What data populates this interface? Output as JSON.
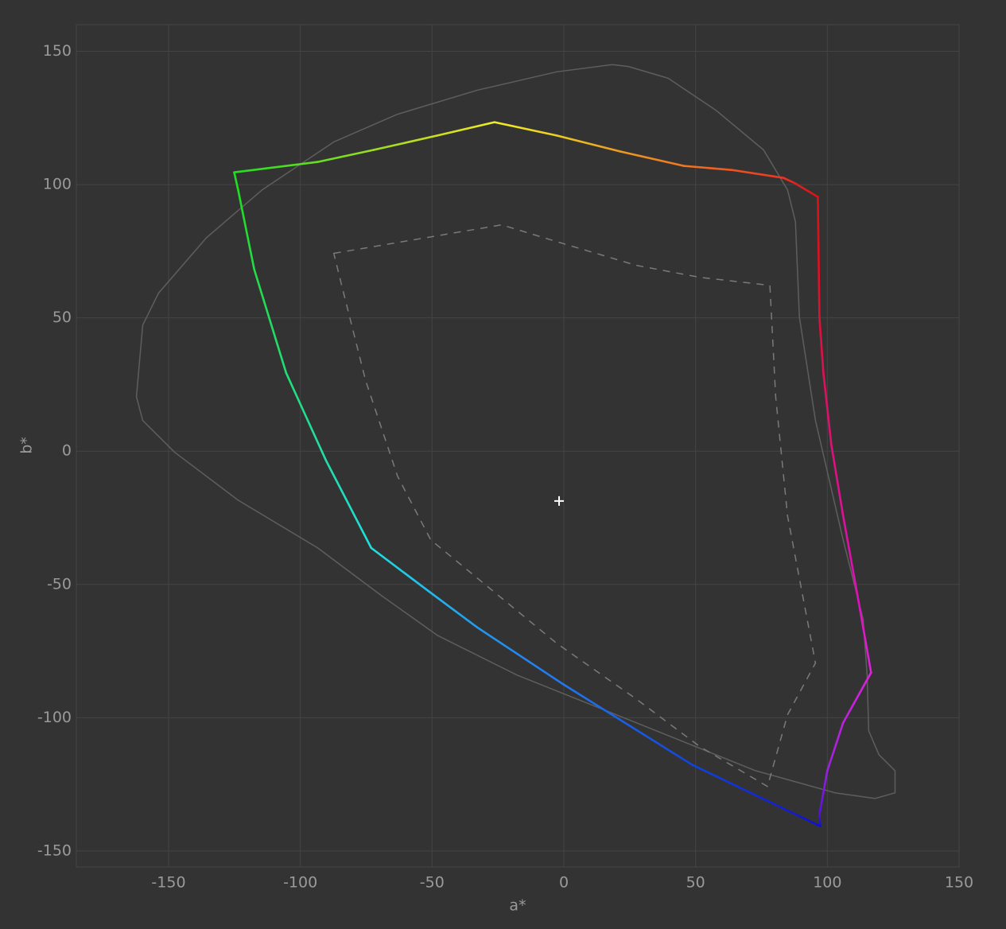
{
  "chart_data": {
    "type": "line",
    "x_label": "a*",
    "y_label": "b*",
    "xlim": [
      -185,
      150
    ],
    "ylim": [
      -156,
      160
    ],
    "xticks": [
      -150,
      -100,
      -50,
      0,
      50,
      100,
      150
    ],
    "yticks": [
      -150,
      -100,
      -50,
      0,
      50,
      100,
      150
    ],
    "grid": true,
    "series": [
      {
        "closed": true,
        "width": 2.6,
        "x": [
          -125.1,
          -93.4,
          -72.2,
          -48,
          -26.3,
          -2.7,
          21.5,
          45.6,
          63.7,
          83.4,
          87.9,
          96.4,
          97,
          98.5,
          101.5,
          106,
          112,
          116.6,
          106,
          100,
          97,
          97.3,
          48.6,
          0,
          -32.9,
          -51.1,
          -73.1,
          -90.3,
          -105.4,
          -117.5,
          -123.6
        ],
        "values": [
          104.6,
          108.5,
          113,
          118.4,
          123.4,
          118.4,
          112.4,
          107,
          105.5,
          102.5,
          100.4,
          95.4,
          50.3,
          29.4,
          2.5,
          -24.3,
          -57.2,
          -83.1,
          -101.9,
          -119.9,
          -136.3,
          -140.7,
          -117.6,
          -87.6,
          -66.1,
          -52.7,
          -36.3,
          -3.4,
          29.4,
          68.2,
          98
        ],
        "colors": [
          "#22dd22",
          "#66dd22",
          "#99dd22",
          "#ccdd22",
          "#eeee22",
          "#eecc22",
          "#ee9922",
          "#ee7722",
          "#ee5522",
          "#ee3322",
          "#dd2222",
          "#dd1111",
          "#dd1133",
          "#dd1155",
          "#dd1177",
          "#dd1199",
          "#dd11bb",
          "#dd22dd",
          "#bb22dd",
          "#9922dd",
          "#5511dd",
          "#1111cc",
          "#1144dd",
          "#2277ee",
          "#2299ee",
          "#22bbee",
          "#22dddd",
          "#22ddaa",
          "#22dd77",
          "#22dd44",
          "#22dd22"
        ]
      },
      {
        "closed": true,
        "width": 1.5,
        "color": "#5e5e5e",
        "x": [
          18.4,
          -2.7,
          -32.9,
          -63.1,
          -87.3,
          -114.5,
          -135.6,
          -153.8,
          -159.8,
          -162.2,
          -159.8,
          -147.7,
          -123.6,
          -93.4,
          -69.2,
          -48,
          -17.8,
          27.5,
          72.8,
          103,
          118.1,
          125.7,
          125.7,
          119.6,
          115.7,
          115.1,
          113.6,
          106,
          95.5,
          89.4,
          87.9,
          84.9,
          75.8,
          57.7,
          39.6,
          24.5
        ],
        "values": [
          145,
          142.3,
          135.4,
          126.4,
          116,
          98,
          80.1,
          59.3,
          47.3,
          20.4,
          11.5,
          -0.4,
          -18.4,
          -36.3,
          -54.2,
          -69.1,
          -84,
          -101.9,
          -119.9,
          -128.2,
          -130.3,
          -128.2,
          -119.9,
          -113.9,
          -104.9,
          -84,
          -63.1,
          -33.3,
          11.5,
          50.3,
          86.1,
          98,
          113,
          127.9,
          139.9,
          144.3
        ]
      },
      {
        "closed": true,
        "width": 1.5,
        "color": "#7a7a7a",
        "dash": "9,8",
        "x": [
          -87.3,
          -23.6,
          -2.7,
          27.5,
          51.7,
          78.2,
          80.4,
          84.9,
          95.5,
          84.9,
          77.3,
          51.7,
          27.5,
          -2.7,
          -50.5,
          -63.1,
          -75.2,
          -84.3
        ],
        "values": [
          74.2,
          84.9,
          78.6,
          69.7,
          65.2,
          62.2,
          20.4,
          -24.3,
          -79.5,
          -98.9,
          -125.8,
          -110.9,
          -93,
          -72.1,
          -33.3,
          -9.4,
          26.4,
          62.2
        ]
      }
    ],
    "marker": {
      "x": -1.8,
      "y": -18.7,
      "color": "#ffffff"
    }
  }
}
